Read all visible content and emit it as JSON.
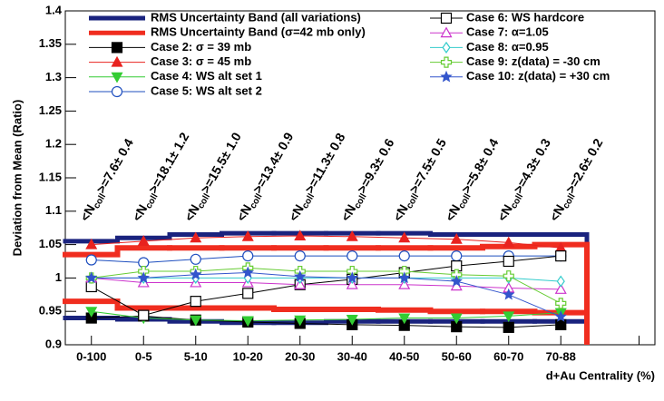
{
  "chart_data": {
    "type": "line",
    "y_label": "Deviation from Mean (Ratio)",
    "x_label": "d+Au Centrality (%)",
    "categories": [
      "0-100",
      "0-5",
      "5-10",
      "10-20",
      "20-30",
      "30-40",
      "40-50",
      "50-60",
      "60-70",
      "70-88"
    ],
    "ylim": [
      0.9,
      1.4
    ],
    "yticks": [
      0.9,
      0.95,
      1,
      1.05,
      1.1,
      1.15,
      1.2,
      1.25,
      1.3,
      1.35,
      1.4
    ],
    "annotation_prefix": "<N",
    "annotation_sub": "coll",
    "annotations": [
      ">=7.6± 0.4",
      ">=18.1± 1.2",
      ">=15.5± 1.0",
      ">=13.4± 0.9",
      ">=11.3± 0.8",
      ">=9.3± 0.6",
      ">=7.5± 0.5",
      ">=5.8± 0.4",
      ">=4.3± 0.3",
      ">=2.6± 0.2"
    ],
    "bands": [
      {
        "name": "RMS Uncertainty Band (all variations)",
        "color": "#1a237e",
        "upper": [
          1.055,
          1.06,
          1.065,
          1.067,
          1.067,
          1.067,
          1.067,
          1.065,
          1.065,
          1.065
        ],
        "lower": [
          0.94,
          0.938,
          0.935,
          0.933,
          0.933,
          0.935,
          0.935,
          0.935,
          0.935,
          0.935
        ]
      },
      {
        "name": "RMS Uncertainty Band (σ=42 mb only)",
        "color": "#f02d1f",
        "upper": [
          1.035,
          1.045,
          1.045,
          1.045,
          1.045,
          1.045,
          1.045,
          1.045,
          1.047,
          1.05
        ],
        "lower": [
          0.965,
          0.955,
          0.955,
          0.955,
          0.953,
          0.953,
          0.952,
          0.95,
          0.95,
          0.948
        ]
      }
    ],
    "series": [
      {
        "name": "Case 2:  σ = 39 mb",
        "color": "#000000",
        "marker": "square-filled",
        "values": [
          0.94,
          0.943,
          0.937,
          0.934,
          0.932,
          0.93,
          0.929,
          0.927,
          0.926,
          0.93
        ]
      },
      {
        "name": "Case 3:  σ = 45 mb",
        "color": "#e8221f",
        "marker": "triangle-up-filled",
        "values": [
          1.05,
          1.055,
          1.06,
          1.062,
          1.063,
          1.062,
          1.06,
          1.058,
          1.053,
          1.045
        ]
      },
      {
        "name": "Case 4:  WS alt set 1",
        "color": "#33cc33",
        "marker": "triangle-down-filled",
        "values": [
          0.95,
          0.94,
          0.937,
          0.936,
          0.937,
          0.938,
          0.94,
          0.94,
          0.943,
          0.948
        ]
      },
      {
        "name": "Case 5:  WS alt set 2",
        "color": "#1f4fbf",
        "marker": "circle-open",
        "values": [
          1.027,
          1.023,
          1.028,
          1.033,
          1.033,
          1.033,
          1.033,
          1.033,
          1.033,
          1.033
        ]
      },
      {
        "name": "Case 6:  WS hardcore",
        "color": "#000000",
        "marker": "square-open",
        "values": [
          0.987,
          0.944,
          0.965,
          0.977,
          0.99,
          0.998,
          1.008,
          1.018,
          1.025,
          1.033
        ]
      },
      {
        "name": "Case 7:  α=1.05",
        "color": "#cc33cc",
        "marker": "triangle-up-open",
        "values": [
          1.0,
          0.993,
          0.993,
          0.993,
          0.99,
          0.99,
          0.99,
          0.988,
          0.985,
          0.983
        ]
      },
      {
        "name": "Case 8:  α=0.95",
        "color": "#33cccc",
        "marker": "diamond-open",
        "values": [
          1.0,
          1.0,
          1.0,
          1.0,
          1.0,
          1.0,
          1.0,
          1.0,
          1.0,
          0.995
        ]
      },
      {
        "name": "Case 9:  z(data) = -30 cm",
        "color": "#66cc33",
        "marker": "cross-open",
        "values": [
          1.0,
          1.01,
          1.01,
          1.015,
          1.01,
          1.01,
          1.01,
          1.005,
          1.003,
          0.962
        ]
      },
      {
        "name": "Case 10:  z(data) = +30 cm",
        "color": "#3355cc",
        "marker": "star",
        "values": [
          1.0,
          1.0,
          1.005,
          1.008,
          1.002,
          1.0,
          1.0,
          0.995,
          0.975,
          0.942
        ]
      }
    ]
  }
}
